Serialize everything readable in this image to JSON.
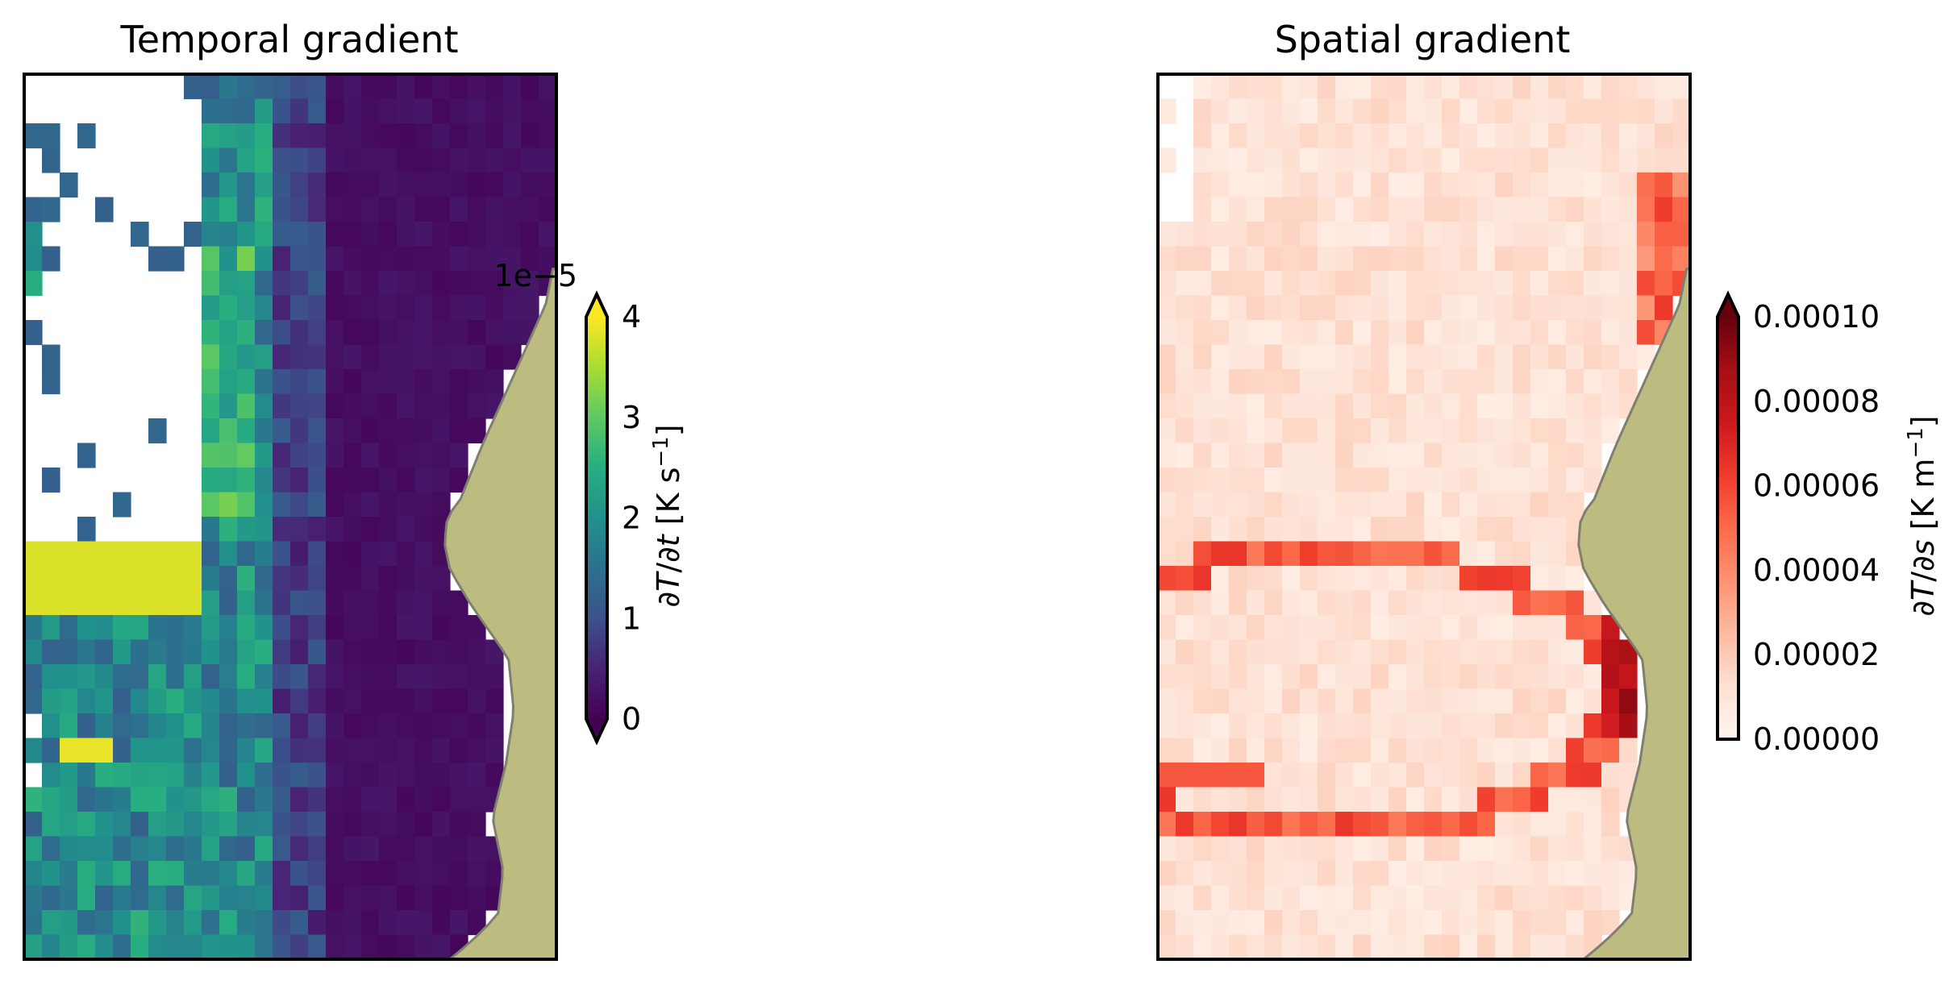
{
  "chart_data": [
    {
      "type": "heatmap",
      "title": "Temporal gradient",
      "colormap": "viridis",
      "grid": false,
      "colorbar": {
        "label": "∂T/∂t [K s⁻¹]",
        "offset_text": "1e−5",
        "ticks": [
          "0",
          "1",
          "2",
          "3",
          "4"
        ],
        "range": [
          0,
          4
        ],
        "extend": "both",
        "position": "right"
      },
      "land_color": "#bdbc80",
      "missing_data": "white",
      "grid_shape": {
        "rows": 36,
        "cols": 30
      }
    },
    {
      "type": "heatmap",
      "title": "Spatial gradient",
      "colormap": "Reds",
      "grid": false,
      "colorbar": {
        "label": "∂T/∂s [K m⁻¹]",
        "ticks": [
          "0.00000",
          "0.00002",
          "0.00004",
          "0.00006",
          "0.00008",
          "0.00010"
        ],
        "range": [
          0,
          0.0001
        ],
        "extend": "max",
        "position": "right"
      },
      "land_color": "#bdbc80",
      "missing_data": "white",
      "grid_shape": {
        "rows": 36,
        "cols": 30
      }
    }
  ]
}
